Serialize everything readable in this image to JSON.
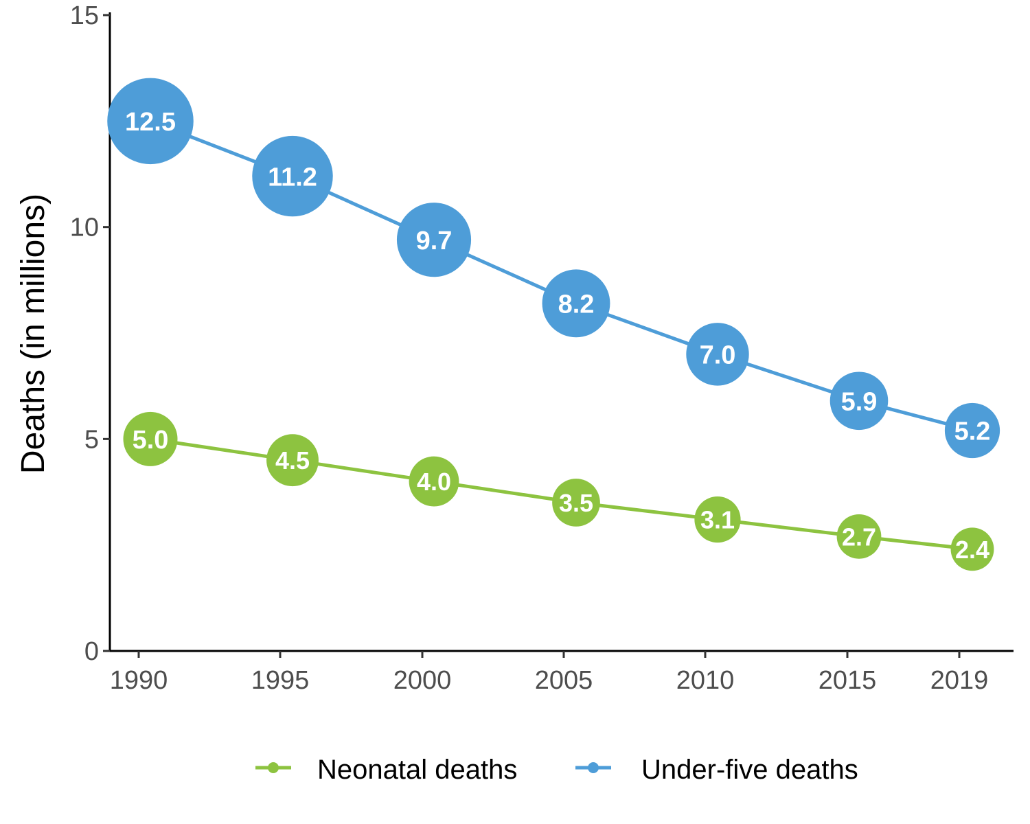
{
  "chart_data": {
    "type": "line",
    "x": [
      1990,
      1995,
      2000,
      2005,
      2010,
      2015,
      2019
    ],
    "x_tick_labels": [
      "1990",
      "1995",
      "2000",
      "2005",
      "2010",
      "2015",
      "2019"
    ],
    "y_ticks": [
      0,
      5,
      10,
      15
    ],
    "y_tick_labels": [
      "0",
      "5",
      "10",
      "15"
    ],
    "ylim": [
      0,
      15
    ],
    "ylabel": "Deaths (in millions)",
    "xlabel": "",
    "title": "",
    "grid": false,
    "legend_position": "bottom",
    "series": [
      {
        "name": "Neonatal deaths",
        "color": "#8dc340",
        "values": [
          5.0,
          4.5,
          4.0,
          3.5,
          3.1,
          2.7,
          2.4
        ],
        "labels": [
          "5.0",
          "4.5",
          "4.0",
          "3.5",
          "3.1",
          "2.7",
          "2.4"
        ]
      },
      {
        "name": "Under-five deaths",
        "color": "#4e9dd8",
        "values": [
          12.5,
          11.2,
          9.7,
          8.2,
          7.0,
          5.9,
          5.2
        ],
        "labels": [
          "12.5",
          "11.2",
          "9.7",
          "8.2",
          "7.0",
          "5.9",
          "5.2"
        ]
      }
    ]
  }
}
